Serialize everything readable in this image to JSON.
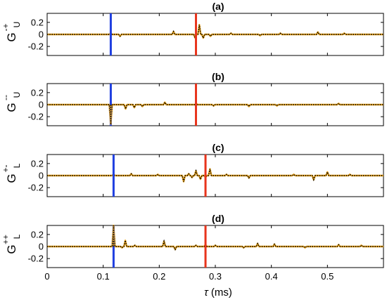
{
  "chart_data": {
    "type": "line",
    "x_axis": {
      "label_symbol": "τ",
      "label_unit": " (ms)",
      "range": [
        0,
        0.6
      ],
      "ticks": [
        "0",
        "0.1",
        "0.2",
        "0.3",
        "0.4",
        "0.5"
      ],
      "tick_values": [
        0,
        0.1,
        0.2,
        0.3,
        0.4,
        0.5
      ]
    },
    "y_axis": {
      "range": [
        -0.35,
        0.35
      ],
      "ticks": [
        "0.2",
        "0",
        "-0.2"
      ],
      "tick_values": [
        0.2,
        0,
        -0.2
      ]
    },
    "series_styles": {
      "solid_color": "#e8a21a",
      "dotted_color": "#000000",
      "blue_marker_color": "#1f3fe0",
      "red_marker_color": "#e8341c"
    },
    "panels": [
      {
        "title": "(a)",
        "ylabel_base": "G",
        "ylabel_sup": "-+",
        "ylabel_sub": "U",
        "blue_line_x": 0.1135,
        "red_line_x": 0.2655,
        "spikes": [
          {
            "x": 0.1135,
            "y": 0.02
          },
          {
            "x": 0.13,
            "y": -0.03
          },
          {
            "x": 0.2255,
            "y": 0.05
          },
          {
            "x": 0.264,
            "y": -0.06
          },
          {
            "x": 0.2715,
            "y": 0.16
          },
          {
            "x": 0.2785,
            "y": -0.06
          },
          {
            "x": 0.2915,
            "y": -0.03
          },
          {
            "x": 0.328,
            "y": 0.02
          },
          {
            "x": 0.38,
            "y": -0.02
          },
          {
            "x": 0.416,
            "y": 0.02
          },
          {
            "x": 0.483,
            "y": 0.04
          },
          {
            "x": 0.53,
            "y": 0.02
          }
        ]
      },
      {
        "title": "(b)",
        "ylabel_base": "G",
        "ylabel_sup": "--",
        "ylabel_sub": "U",
        "blue_line_x": 0.1135,
        "red_line_x": 0.2655,
        "spikes": [
          {
            "x": 0.1135,
            "y": -0.33
          },
          {
            "x": 0.14,
            "y": -0.07
          },
          {
            "x": 0.1555,
            "y": -0.05
          },
          {
            "x": 0.17,
            "y": -0.03
          },
          {
            "x": 0.21,
            "y": 0.04
          },
          {
            "x": 0.266,
            "y": 0.02
          },
          {
            "x": 0.297,
            "y": -0.02
          },
          {
            "x": 0.36,
            "y": -0.03
          },
          {
            "x": 0.41,
            "y": -0.02
          },
          {
            "x": 0.52,
            "y": 0.02
          }
        ]
      },
      {
        "title": "(c)",
        "ylabel_base": "G",
        "ylabel_sup": "+-",
        "ylabel_sub": "L",
        "blue_line_x": 0.1185,
        "red_line_x": 0.2825,
        "spikes": [
          {
            "x": 0.1185,
            "y": 0.02
          },
          {
            "x": 0.15,
            "y": 0.03
          },
          {
            "x": 0.1975,
            "y": 0.02
          },
          {
            "x": 0.2435,
            "y": -0.1
          },
          {
            "x": 0.2525,
            "y": 0.03
          },
          {
            "x": 0.2585,
            "y": -0.03
          },
          {
            "x": 0.2655,
            "y": 0.08
          },
          {
            "x": 0.2735,
            "y": -0.06
          },
          {
            "x": 0.2825,
            "y": -0.03
          },
          {
            "x": 0.2905,
            "y": 0.11
          },
          {
            "x": 0.32,
            "y": 0.02
          },
          {
            "x": 0.36,
            "y": -0.04
          },
          {
            "x": 0.44,
            "y": 0.02
          },
          {
            "x": 0.4755,
            "y": -0.07
          },
          {
            "x": 0.5,
            "y": 0.06
          },
          {
            "x": 0.54,
            "y": 0.02
          }
        ]
      },
      {
        "title": "(d)",
        "ylabel_base": "G",
        "ylabel_sup": "++",
        "ylabel_sub": "L",
        "blue_line_x": 0.1185,
        "red_line_x": 0.2825,
        "spikes": [
          {
            "x": 0.1185,
            "y": 0.35
          },
          {
            "x": 0.1335,
            "y": -0.02
          },
          {
            "x": 0.1395,
            "y": 0.1
          },
          {
            "x": 0.1565,
            "y": 0.02
          },
          {
            "x": 0.2085,
            "y": 0.09
          },
          {
            "x": 0.2285,
            "y": -0.05
          },
          {
            "x": 0.2655,
            "y": 0.02
          },
          {
            "x": 0.2825,
            "y": 0.03
          },
          {
            "x": 0.3,
            "y": 0.02
          },
          {
            "x": 0.3505,
            "y": -0.02
          },
          {
            "x": 0.3755,
            "y": 0.05
          },
          {
            "x": 0.4055,
            "y": 0.04
          },
          {
            "x": 0.46,
            "y": -0.02
          },
          {
            "x": 0.52,
            "y": 0.03
          },
          {
            "x": 0.5605,
            "y": 0.02
          }
        ]
      }
    ]
  }
}
